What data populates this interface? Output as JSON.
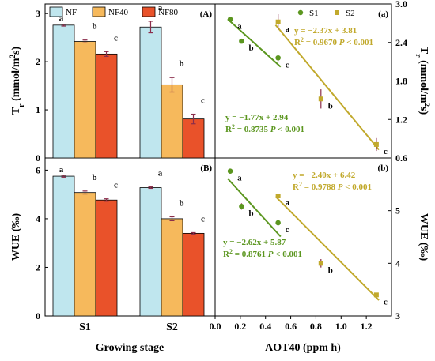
{
  "colors": {
    "NF": "#bfe6ee",
    "NF40": "#f6b95c",
    "NF80": "#e9522a",
    "S1": "#5b961f",
    "S2": "#c1a92c",
    "error": "#8b2d4b"
  },
  "chart_data": [
    {
      "id": "A",
      "panel_label": "(A)",
      "type": "bar",
      "categories": [
        "S1",
        "S2"
      ],
      "ylim": [
        0,
        3.2
      ],
      "yticks": [
        0,
        1,
        2,
        3
      ],
      "ylabel": "T_r (mmol/m^2s)",
      "ylabel_main": "T",
      "ylabel_sub": "r",
      "ylabel_rest": " (mmol/m",
      "ylabel_sup": "2",
      "ylabel_end": "s)",
      "series": [
        {
          "name": "NF",
          "values": [
            2.76,
            2.72
          ],
          "errors": [
            0.02,
            0.12
          ],
          "letters": [
            "a",
            "a"
          ]
        },
        {
          "name": "NF40",
          "values": [
            2.42,
            1.52
          ],
          "errors": [
            0.03,
            0.15
          ],
          "letters": [
            "b",
            "b"
          ]
        },
        {
          "name": "NF80",
          "values": [
            2.16,
            0.81
          ],
          "errors": [
            0.05,
            0.1
          ],
          "letters": [
            "c",
            "c"
          ]
        }
      ]
    },
    {
      "id": "a",
      "panel_label": "(a)",
      "type": "scatter",
      "xlim": [
        0,
        1.4
      ],
      "ylim": [
        0.6,
        3.0
      ],
      "yticks": [
        0.6,
        1.2,
        1.8,
        2.4,
        3.0
      ],
      "ytick_labels": [
        "0.6",
        "1.2",
        "1.8",
        "2.4",
        "3.0"
      ],
      "ylabel": "T_r (mmol/m^2s)",
      "series": [
        {
          "name": "S1",
          "x": [
            0.12,
            0.21,
            0.5
          ],
          "y": [
            2.76,
            2.42,
            2.16
          ],
          "errors": [
            0.02,
            0.03,
            0.05
          ],
          "letters": [
            "a",
            "b",
            "c"
          ],
          "fit": {
            "slope": -1.77,
            "intercept": 2.94
          },
          "eq1": "y = −1.77x + 2.94",
          "eq2_r": "R",
          "eq2_sup": "2",
          "eq2_rest": " = 0.8735  ",
          "eq2_p": "P",
          "eq2_end": " < 0.001"
        },
        {
          "name": "S2",
          "x": [
            0.5,
            0.84,
            1.28
          ],
          "y": [
            2.72,
            1.52,
            0.81
          ],
          "errors": [
            0.12,
            0.15,
            0.1
          ],
          "letters": [
            "a",
            "b",
            "c"
          ],
          "fit": {
            "slope": -2.37,
            "intercept": 3.81
          },
          "eq1": "y = −2.37x + 3.81",
          "eq2_r": "R",
          "eq2_sup": "2",
          "eq2_rest": " = 0.9670  ",
          "eq2_p": "P",
          "eq2_end": " < 0.001"
        }
      ]
    },
    {
      "id": "B",
      "panel_label": "(B)",
      "type": "bar",
      "categories": [
        "S1",
        "S2"
      ],
      "ylim": [
        0,
        6.5
      ],
      "yticks": [
        0,
        2,
        4,
        6
      ],
      "ylabel": "WUE (‰)",
      "xlabel": "Growing stage",
      "series": [
        {
          "name": "NF",
          "values": [
            5.75,
            5.28
          ],
          "errors": [
            0.04,
            0.03
          ],
          "letters": [
            "a",
            "a"
          ]
        },
        {
          "name": "NF40",
          "values": [
            5.08,
            4.0
          ],
          "errors": [
            0.06,
            0.08
          ],
          "letters": [
            "b",
            "b"
          ]
        },
        {
          "name": "NF80",
          "values": [
            4.77,
            3.4
          ],
          "errors": [
            0.05,
            0.03
          ],
          "letters": [
            "c",
            "c"
          ]
        }
      ]
    },
    {
      "id": "b",
      "panel_label": "(b)",
      "type": "scatter",
      "xlim": [
        0,
        1.4
      ],
      "xticks": [
        0.0,
        0.2,
        0.4,
        0.6,
        0.8,
        1.0,
        1.2
      ],
      "xtick_labels": [
        "0.0",
        "0.2",
        "0.4",
        "0.6",
        "0.8",
        "1.0",
        "1.2"
      ],
      "xlabel": "AOT40 (ppm h)",
      "ylim": [
        3,
        6
      ],
      "yticks": [
        3,
        4,
        5
      ],
      "ytick_labels": [
        "3",
        "4",
        "5"
      ],
      "ylabel": "WUE (‰)",
      "series": [
        {
          "name": "S1",
          "x": [
            0.12,
            0.21,
            0.5
          ],
          "y": [
            5.75,
            5.08,
            4.77
          ],
          "errors": [
            0.04,
            0.06,
            0.05
          ],
          "letters": [
            "a",
            "b",
            "c"
          ],
          "fit": {
            "slope": -2.62,
            "intercept": 5.87
          },
          "eq1": "y = −2.62x + 5.87",
          "eq2_r": "R",
          "eq2_sup": "2",
          "eq2_rest": " = 0.8761  ",
          "eq2_p": "P",
          "eq2_end": " < 0.001"
        },
        {
          "name": "S2",
          "x": [
            0.5,
            0.84,
            1.28
          ],
          "y": [
            5.28,
            4.0,
            3.4
          ],
          "errors": [
            0.03,
            0.08,
            0.03
          ],
          "letters": [
            "a",
            "b",
            "c"
          ],
          "fit": {
            "slope": -2.4,
            "intercept": 6.42
          },
          "eq1": "y = −2.40x + 6.42",
          "eq2_r": "R",
          "eq2_sup": "2",
          "eq2_rest": " = 0.9788  ",
          "eq2_p": "P",
          "eq2_end": " < 0.001"
        }
      ]
    }
  ],
  "legend_bar": [
    "NF",
    "NF40",
    "NF80"
  ],
  "legend_scatter": [
    "S1",
    "S2"
  ]
}
